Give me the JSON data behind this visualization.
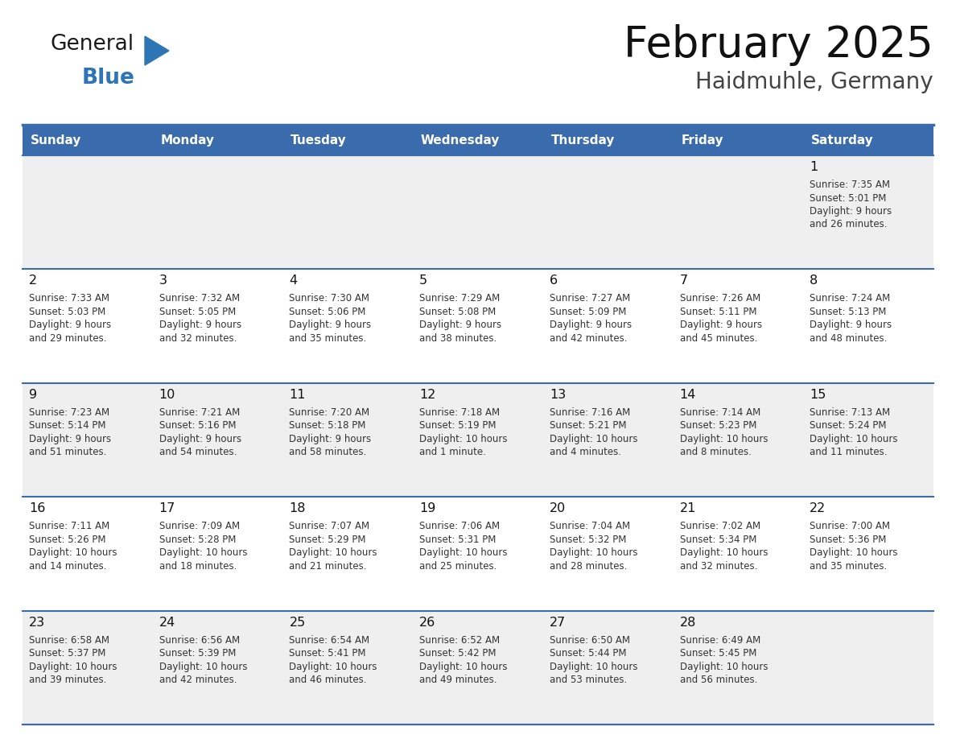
{
  "title": "February 2025",
  "subtitle": "Haidmuhle, Germany",
  "days_of_week": [
    "Sunday",
    "Monday",
    "Tuesday",
    "Wednesday",
    "Thursday",
    "Friday",
    "Saturday"
  ],
  "header_bg": "#3A6BAD",
  "header_text_color": "#FFFFFF",
  "cell_bg_light": "#EFEFEF",
  "cell_bg_white": "#FFFFFF",
  "line_color": "#3A6BAD",
  "logo_general_color": "#1a1a1a",
  "logo_blue_color": "#2E75B6",
  "calendar_data": [
    [
      null,
      null,
      null,
      null,
      null,
      null,
      {
        "day": 1,
        "sunrise": "7:35 AM",
        "sunset": "5:01 PM",
        "daylight": "9 hours and 26 minutes."
      }
    ],
    [
      {
        "day": 2,
        "sunrise": "7:33 AM",
        "sunset": "5:03 PM",
        "daylight": "9 hours and 29 minutes."
      },
      {
        "day": 3,
        "sunrise": "7:32 AM",
        "sunset": "5:05 PM",
        "daylight": "9 hours and 32 minutes."
      },
      {
        "day": 4,
        "sunrise": "7:30 AM",
        "sunset": "5:06 PM",
        "daylight": "9 hours and 35 minutes."
      },
      {
        "day": 5,
        "sunrise": "7:29 AM",
        "sunset": "5:08 PM",
        "daylight": "9 hours and 38 minutes."
      },
      {
        "day": 6,
        "sunrise": "7:27 AM",
        "sunset": "5:09 PM",
        "daylight": "9 hours and 42 minutes."
      },
      {
        "day": 7,
        "sunrise": "7:26 AM",
        "sunset": "5:11 PM",
        "daylight": "9 hours and 45 minutes."
      },
      {
        "day": 8,
        "sunrise": "7:24 AM",
        "sunset": "5:13 PM",
        "daylight": "9 hours and 48 minutes."
      }
    ],
    [
      {
        "day": 9,
        "sunrise": "7:23 AM",
        "sunset": "5:14 PM",
        "daylight": "9 hours and 51 minutes."
      },
      {
        "day": 10,
        "sunrise": "7:21 AM",
        "sunset": "5:16 PM",
        "daylight": "9 hours and 54 minutes."
      },
      {
        "day": 11,
        "sunrise": "7:20 AM",
        "sunset": "5:18 PM",
        "daylight": "9 hours and 58 minutes."
      },
      {
        "day": 12,
        "sunrise": "7:18 AM",
        "sunset": "5:19 PM",
        "daylight": "10 hours and 1 minute."
      },
      {
        "day": 13,
        "sunrise": "7:16 AM",
        "sunset": "5:21 PM",
        "daylight": "10 hours and 4 minutes."
      },
      {
        "day": 14,
        "sunrise": "7:14 AM",
        "sunset": "5:23 PM",
        "daylight": "10 hours and 8 minutes."
      },
      {
        "day": 15,
        "sunrise": "7:13 AM",
        "sunset": "5:24 PM",
        "daylight": "10 hours and 11 minutes."
      }
    ],
    [
      {
        "day": 16,
        "sunrise": "7:11 AM",
        "sunset": "5:26 PM",
        "daylight": "10 hours and 14 minutes."
      },
      {
        "day": 17,
        "sunrise": "7:09 AM",
        "sunset": "5:28 PM",
        "daylight": "10 hours and 18 minutes."
      },
      {
        "day": 18,
        "sunrise": "7:07 AM",
        "sunset": "5:29 PM",
        "daylight": "10 hours and 21 minutes."
      },
      {
        "day": 19,
        "sunrise": "7:06 AM",
        "sunset": "5:31 PM",
        "daylight": "10 hours and 25 minutes."
      },
      {
        "day": 20,
        "sunrise": "7:04 AM",
        "sunset": "5:32 PM",
        "daylight": "10 hours and 28 minutes."
      },
      {
        "day": 21,
        "sunrise": "7:02 AM",
        "sunset": "5:34 PM",
        "daylight": "10 hours and 32 minutes."
      },
      {
        "day": 22,
        "sunrise": "7:00 AM",
        "sunset": "5:36 PM",
        "daylight": "10 hours and 35 minutes."
      }
    ],
    [
      {
        "day": 23,
        "sunrise": "6:58 AM",
        "sunset": "5:37 PM",
        "daylight": "10 hours and 39 minutes."
      },
      {
        "day": 24,
        "sunrise": "6:56 AM",
        "sunset": "5:39 PM",
        "daylight": "10 hours and 42 minutes."
      },
      {
        "day": 25,
        "sunrise": "6:54 AM",
        "sunset": "5:41 PM",
        "daylight": "10 hours and 46 minutes."
      },
      {
        "day": 26,
        "sunrise": "6:52 AM",
        "sunset": "5:42 PM",
        "daylight": "10 hours and 49 minutes."
      },
      {
        "day": 27,
        "sunrise": "6:50 AM",
        "sunset": "5:44 PM",
        "daylight": "10 hours and 53 minutes."
      },
      {
        "day": 28,
        "sunrise": "6:49 AM",
        "sunset": "5:45 PM",
        "daylight": "10 hours and 56 minutes."
      },
      null
    ]
  ]
}
